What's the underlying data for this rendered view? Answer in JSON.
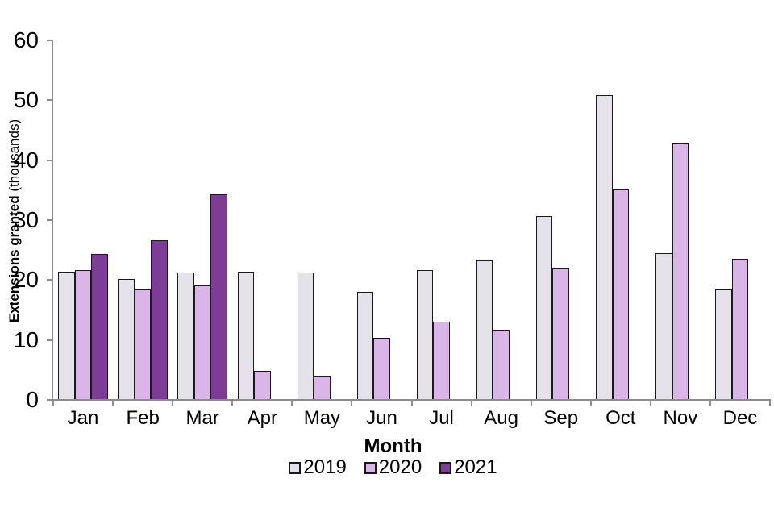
{
  "figure": {
    "y_axis_title_bold": "Extensions granted",
    "y_axis_title_normal": " (thousands)",
    "x_axis_title": "Month"
  },
  "chart_data": {
    "type": "bar",
    "title": "",
    "xlabel": "Month",
    "ylabel": "Extensions granted (thousands)",
    "ylim": [
      0,
      60
    ],
    "yticks": [
      0,
      10,
      20,
      30,
      40,
      50,
      60
    ],
    "grid": false,
    "legend_position": "bottom",
    "categories": [
      "Jan",
      "Feb",
      "Mar",
      "Apr",
      "May",
      "Jun",
      "Jul",
      "Aug",
      "Sep",
      "Oct",
      "Nov",
      "Dec"
    ],
    "series": [
      {
        "name": "2019",
        "color": "#e5e2ea",
        "values": [
          21.4,
          20.2,
          21.2,
          21.4,
          21.3,
          18.0,
          21.6,
          23.3,
          30.7,
          50.8,
          24.5,
          18.4
        ]
      },
      {
        "name": "2020",
        "color": "#d9b6e7",
        "values": [
          21.6,
          18.4,
          19.1,
          4.8,
          4.1,
          10.3,
          13.1,
          11.7,
          21.9,
          35.1,
          42.9,
          23.6
        ]
      },
      {
        "name": "2021",
        "color": "#7d3c96",
        "values": [
          24.4,
          26.7,
          34.3,
          null,
          null,
          null,
          null,
          null,
          null,
          null,
          null,
          null
        ]
      }
    ],
    "axis_color": "#8c8c8c",
    "bar_outline_color": "#1a1a1a"
  }
}
